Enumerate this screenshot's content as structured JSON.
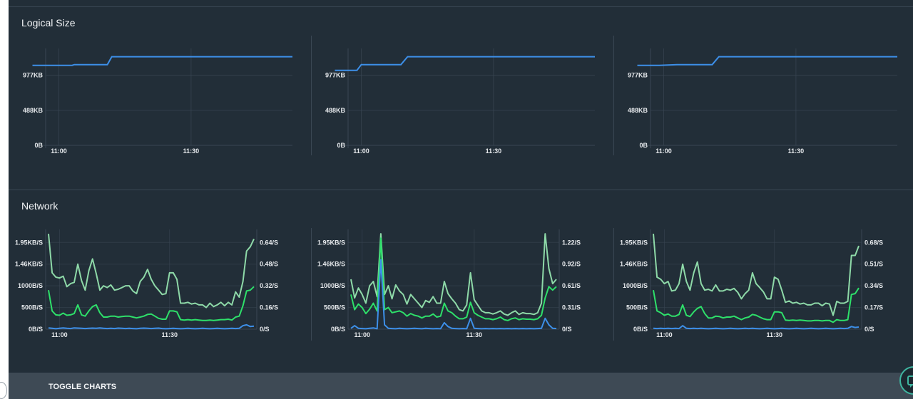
{
  "colors": {
    "blue": "#3d8fe8",
    "bright_green": "#2ee06a",
    "pale_green": "#8ed9a8",
    "grid": "#3a4754",
    "axis_text": "#e6e9ec"
  },
  "logical_size": {
    "title": "Logical Size"
  },
  "network": {
    "title": "Network"
  },
  "footer": {
    "toggle_label": "TOGGLE CHARTS"
  },
  "chart_data": [
    {
      "id": "logical-size-1",
      "type": "line",
      "x_ticks": [
        "11:00",
        "11:30"
      ],
      "y_ticks": [
        "0B",
        "488KB",
        "977KB"
      ],
      "xlim": [
        0,
        56
      ],
      "ylim": [
        0,
        1350
      ],
      "x_tick_positions": [
        3,
        33
      ],
      "y_tick_values": [
        0,
        488,
        977
      ],
      "series": [
        {
          "color_key": "blue",
          "points": [
            [
              -3,
              1115
            ],
            [
              3,
              1115
            ],
            [
              6,
              1115
            ],
            [
              6.5,
              1125
            ],
            [
              13,
              1125
            ],
            [
              14,
              1125
            ],
            [
              15,
              1235
            ],
            [
              26,
              1235
            ],
            [
              56,
              1235
            ]
          ]
        }
      ]
    },
    {
      "id": "logical-size-2",
      "type": "line",
      "x_ticks": [
        "11:00",
        "11:30"
      ],
      "y_ticks": [
        "0B",
        "488KB",
        "977KB"
      ],
      "xlim": [
        0,
        56
      ],
      "ylim": [
        0,
        1350
      ],
      "x_tick_positions": [
        3,
        33
      ],
      "y_tick_values": [
        0,
        488,
        977
      ],
      "series": [
        {
          "color_key": "blue",
          "points": [
            [
              -3,
              1045
            ],
            [
              1,
              1045
            ],
            [
              2,
              1045
            ],
            [
              3,
              1125
            ],
            [
              12,
              1125
            ],
            [
              13.5,
              1235
            ],
            [
              26,
              1235
            ],
            [
              56,
              1235
            ]
          ]
        }
      ]
    },
    {
      "id": "logical-size-3",
      "type": "line",
      "x_ticks": [
        "11:00",
        "11:30"
      ],
      "y_ticks": [
        "0B",
        "488KB",
        "977KB"
      ],
      "xlim": [
        0,
        56
      ],
      "ylim": [
        0,
        1350
      ],
      "x_tick_positions": [
        3,
        33
      ],
      "y_tick_values": [
        0,
        488,
        977
      ],
      "series": [
        {
          "color_key": "blue",
          "points": [
            [
              -3,
              1115
            ],
            [
              2,
              1115
            ],
            [
              6,
              1125
            ],
            [
              14,
              1125
            ],
            [
              15.5,
              1235
            ],
            [
              26,
              1235
            ],
            [
              56,
              1235
            ]
          ]
        }
      ]
    },
    {
      "id": "network-1",
      "type": "line",
      "x_ticks": [
        "11:00",
        "11:30"
      ],
      "y_ticks_left": [
        "0B/S",
        "500B/S",
        "1000B/S",
        "1.46KB/S",
        "1.95KB/S"
      ],
      "y_ticks_right": [
        "0/S",
        "0.16/S",
        "0.32/S",
        "0.48/S",
        "0.64/S"
      ],
      "x_tick_positions": [
        3,
        33
      ],
      "ylim": [
        0,
        2300
      ],
      "y_tick_values": [
        0,
        500,
        1000,
        1500,
        2000
      ],
      "series": [
        {
          "color_key": "pale_green",
          "values": [
            2200,
            1300,
            1200,
            1180,
            1220,
            980,
            1050,
            1080,
            1500,
            1120,
            900,
            1350,
            1620,
            1280,
            900,
            1000,
            960,
            1020,
            900,
            920,
            960,
            1000,
            1000,
            880,
            820,
            1100,
            1200,
            1380,
            1150,
            1000,
            900,
            800,
            820,
            1300,
            1300,
            1150,
            600,
            600,
            620,
            580,
            600,
            560,
            560,
            500,
            600,
            520,
            560,
            620,
            540,
            620,
            560,
            860,
            740,
            1100,
            1800,
            1900,
            2080
          ]
        },
        {
          "color_key": "bright_green",
          "values": [
            900,
            420,
            330,
            320,
            370,
            320,
            330,
            360,
            560,
            330,
            300,
            420,
            520,
            560,
            380,
            280,
            280,
            300,
            300,
            280,
            290,
            300,
            300,
            280,
            260,
            280,
            300,
            340,
            350,
            300,
            250,
            230,
            230,
            420,
            420,
            400,
            220,
            210,
            220,
            210,
            220,
            210,
            200,
            200,
            210,
            200,
            210,
            220,
            220,
            230,
            210,
            280,
            300,
            540,
            880,
            900,
            980
          ]
        },
        {
          "color_key": "blue",
          "values": [
            30,
            20,
            10,
            20,
            30,
            20,
            15,
            30,
            25,
            20,
            15,
            20,
            25,
            20,
            30,
            20,
            15,
            20,
            15,
            25,
            20,
            15,
            20,
            15,
            10,
            20,
            25,
            20,
            15,
            20,
            25,
            15,
            10,
            15,
            20,
            15,
            10,
            15,
            20,
            15,
            10,
            15,
            20,
            15,
            10,
            15,
            20,
            15,
            10,
            15,
            20,
            15,
            20,
            80,
            100,
            60,
            70
          ]
        }
      ]
    },
    {
      "id": "network-2",
      "type": "line",
      "x_ticks": [
        "11:00",
        "11:30"
      ],
      "y_ticks_left": [
        "0B/S",
        "500B/S",
        "1000B/S",
        "1.46KB/S",
        "1.95KB/S"
      ],
      "y_ticks_right": [
        "0/S",
        "0.31/S",
        "0.61/S",
        "0.92/S",
        "1.22/S"
      ],
      "x_tick_positions": [
        3,
        33
      ],
      "ylim": [
        0,
        2300
      ],
      "y_tick_values": [
        0,
        500,
        1000,
        1500,
        2000
      ],
      "series": [
        {
          "color_key": "pale_green",
          "values": [
            1150,
            720,
            950,
            800,
            600,
            1000,
            1100,
            750,
            2200,
            800,
            1000,
            700,
            1020,
            880,
            800,
            580,
            800,
            700,
            600,
            500,
            660,
            620,
            750,
            600,
            600,
            1100,
            820,
            700,
            600,
            450,
            420,
            560,
            1300,
            680,
            550,
            420,
            380,
            380,
            350,
            380,
            420,
            350,
            320,
            380,
            420,
            340,
            380,
            360,
            360,
            340,
            380,
            600,
            2200,
            1400,
            1050,
            1150
          ]
        },
        {
          "color_key": "bright_green",
          "values": [
            800,
            450,
            580,
            500,
            360,
            460,
            600,
            420,
            2100,
            450,
            500,
            380,
            400,
            420,
            380,
            300,
            360,
            320,
            300,
            260,
            300,
            300,
            350,
            280,
            300,
            600,
            420,
            380,
            300,
            240,
            240,
            280,
            620,
            380,
            320,
            280,
            240,
            240,
            220,
            240,
            280,
            220,
            200,
            240,
            260,
            220,
            240,
            230,
            230,
            220,
            240,
            320,
            720,
            980,
            900,
            980
          ]
        },
        {
          "color_key": "blue",
          "values": [
            20,
            80,
            20,
            15,
            10,
            20,
            30,
            10,
            1600,
            100,
            20,
            15,
            10,
            20,
            15,
            10,
            15,
            20,
            15,
            10,
            20,
            15,
            10,
            15,
            10,
            150,
            60,
            20,
            15,
            10,
            15,
            10,
            250,
            20,
            15,
            10,
            15,
            10,
            15,
            10,
            15,
            10,
            15,
            10,
            15,
            10,
            15,
            10,
            15,
            10,
            15,
            20,
            250,
            100,
            20,
            15
          ]
        }
      ]
    },
    {
      "id": "network-3",
      "type": "line",
      "x_ticks": [
        "11:00",
        "11:30"
      ],
      "y_ticks_left": [
        "0B/S",
        "500B/S",
        "1000B/S",
        "1.46KB/S",
        "1.95KB/S"
      ],
      "y_ticks_right": [
        "0/S",
        "0.17/S",
        "0.34/S",
        "0.51/S",
        "0.68/S"
      ],
      "x_tick_positions": [
        3,
        33
      ],
      "ylim": [
        0,
        2300
      ],
      "y_tick_values": [
        0,
        500,
        1000,
        1500,
        2000
      ],
      "series": [
        {
          "color_key": "pale_green",
          "values": [
            2200,
            1200,
            1150,
            1050,
            1100,
            880,
            900,
            1050,
            1500,
            1100,
            900,
            1300,
            1550,
            1050,
            900,
            920,
            880,
            1020,
            880,
            880,
            920,
            900,
            940,
            850,
            700,
            820,
            900,
            1300,
            1050,
            960,
            860,
            700,
            700,
            1200,
            1150,
            900,
            620,
            650,
            600,
            620,
            580,
            600,
            560,
            560,
            600,
            600,
            540,
            600,
            580,
            320,
            640,
            600,
            600,
            640,
            1700,
            1700,
            1920
          ]
        },
        {
          "color_key": "bright_green",
          "values": [
            900,
            420,
            380,
            320,
            350,
            300,
            300,
            340,
            560,
            320,
            290,
            400,
            480,
            520,
            360,
            260,
            260,
            300,
            290,
            260,
            280,
            280,
            300,
            260,
            220,
            260,
            280,
            340,
            320,
            280,
            240,
            220,
            220,
            400,
            400,
            380,
            210,
            200,
            210,
            200,
            210,
            200,
            190,
            190,
            200,
            200,
            190,
            200,
            200,
            160,
            220,
            200,
            200,
            220,
            800,
            820,
            950
          ]
        },
        {
          "color_key": "blue",
          "values": [
            20,
            15,
            20,
            15,
            20,
            15,
            20,
            15,
            80,
            20,
            15,
            20,
            15,
            20,
            15,
            10,
            15,
            20,
            15,
            10,
            15,
            20,
            15,
            10,
            15,
            20,
            15,
            20,
            15,
            10,
            15,
            20,
            15,
            10,
            15,
            20,
            15,
            10,
            15,
            20,
            15,
            10,
            15,
            20,
            15,
            10,
            15,
            20,
            15,
            10,
            15,
            20,
            15,
            20,
            60,
            40,
            50
          ]
        }
      ]
    }
  ]
}
